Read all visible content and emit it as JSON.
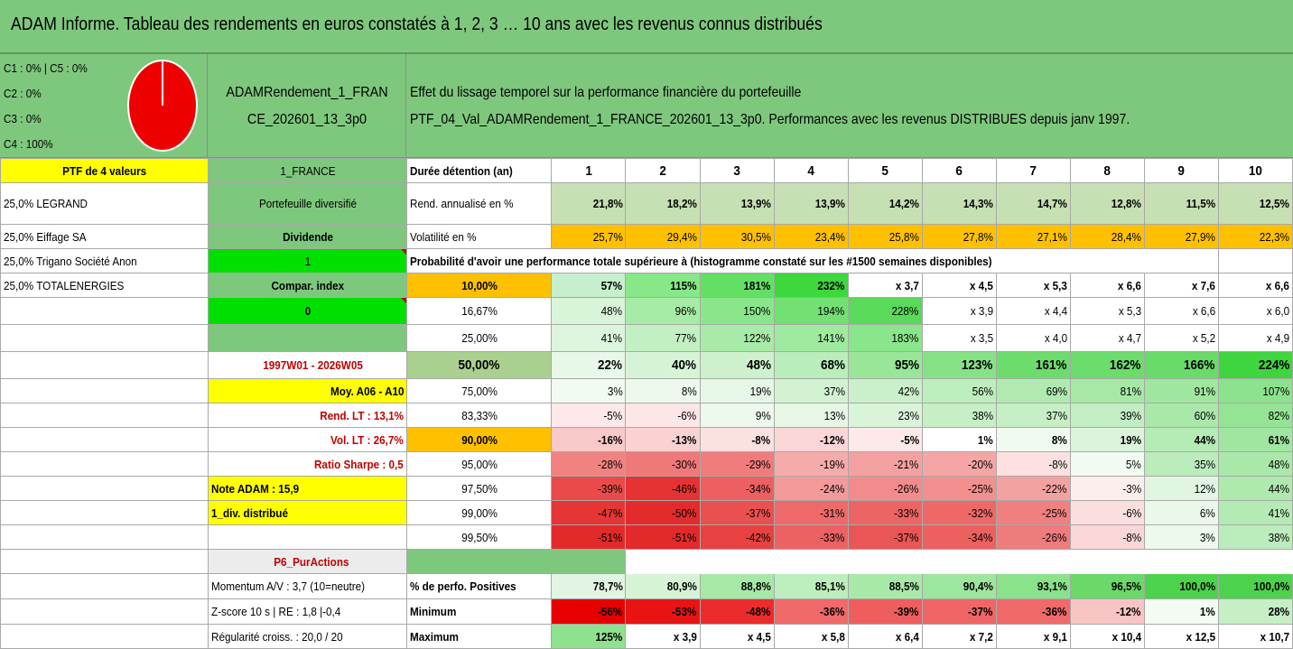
{
  "title": "ADAM Informe. Tableau des rendements en euros constatés à 1, 2, 3 … 10 ans avec les revenus connus distribués",
  "legend": {
    "lines": [
      "C1 : 0% | C5 : 0%",
      "C2 : 0%",
      "C3 : 0%",
      "C4 : 100%"
    ],
    "pie_color": "#ee0000",
    "pie_fraction": 1.0
  },
  "code": {
    "line1": "ADAMRendement_1_FRAN",
    "line2": "CE_202601_13_3p0"
  },
  "desc": {
    "line1": "Effet du lissage temporel sur la performance financière du portefeuille",
    "line2": "PTF_04_Val_ADAMRendement_1_FRANCE_202601_13_3p0. Performances avec les revenus DISTRIBUES depuis janv 1997."
  },
  "left": {
    "ptf": "PTF de 4 valeurs",
    "holdings": [
      "25,0% LEGRAND",
      "25,0% Eiffage SA",
      "25,0% Trigano Société Anon",
      "25,0% TOTALENERGIES"
    ]
  },
  "mid": {
    "france": "1_FRANCE",
    "portefeuille": "Portefeuille diversifié",
    "dividende": "Dividende",
    "one": "1",
    "compar": "Compar. index",
    "zero": "0",
    "period": "1997W01 - 2026W05",
    "moy": "Moy. A06 - A10",
    "rend_lt": "Rend. LT : 13,1%",
    "vol_lt": "Vol. LT : 26,7%",
    "sharpe": "Ratio Sharpe : 0,5",
    "note": "Note ADAM : 15,9",
    "div": "1_div. distribué",
    "p6": "P6_PurActions",
    "momentum": "Momentum A/V : 3,7 (10=neutre)",
    "zscore": "Z-score 10 s | RE : 1,8 |-0,4",
    "regularite": "Régularité croiss. : 20,0 / 20"
  },
  "header": {
    "label": "Durée détention (an)",
    "years": [
      "1",
      "2",
      "3",
      "4",
      "5",
      "6",
      "7",
      "8",
      "9",
      "10"
    ]
  },
  "rend": {
    "label": "Rend. annualisé en %",
    "values": [
      "21,8%",
      "18,2%",
      "13,9%",
      "13,9%",
      "14,2%",
      "14,3%",
      "14,7%",
      "12,8%",
      "11,5%",
      "12,5%"
    ]
  },
  "vol": {
    "label": "Volatilité en %",
    "values": [
      "25,7%",
      "29,4%",
      "30,5%",
      "23,4%",
      "25,8%",
      "27,8%",
      "27,1%",
      "28,4%",
      "27,9%",
      "22,3%"
    ]
  },
  "proba_title": "Probabilité d'avoir une performance totale supérieure à (histogramme constaté sur les #1500 semaines disponibles)",
  "proba": [
    {
      "label": "10,00%",
      "values": [
        "57%",
        "115%",
        "181%",
        "232%",
        "x 3,7",
        "x 4,5",
        "x 5,3",
        "x 6,6",
        "x 7,6",
        "x 6,6"
      ]
    },
    {
      "label": "16,67%",
      "values": [
        "48%",
        "96%",
        "150%",
        "194%",
        "228%",
        "x 3,9",
        "x 4,4",
        "x 5,3",
        "x 6,6",
        "x 6,0"
      ]
    },
    {
      "label": "25,00%",
      "values": [
        "41%",
        "77%",
        "122%",
        "141%",
        "183%",
        "x 3,5",
        "x 4,0",
        "x 4,7",
        "x 5,2",
        "x 4,9"
      ]
    },
    {
      "label": "50,00%",
      "values": [
        "22%",
        "40%",
        "48%",
        "68%",
        "95%",
        "123%",
        "161%",
        "162%",
        "166%",
        "224%"
      ]
    },
    {
      "label": "75,00%",
      "values": [
        "3%",
        "8%",
        "19%",
        "37%",
        "42%",
        "56%",
        "69%",
        "81%",
        "91%",
        "107%"
      ]
    },
    {
      "label": "83,33%",
      "values": [
        "-5%",
        "-6%",
        "9%",
        "13%",
        "23%",
        "38%",
        "37%",
        "39%",
        "60%",
        "82%"
      ]
    },
    {
      "label": "90,00%",
      "values": [
        "-16%",
        "-13%",
        "-8%",
        "-12%",
        "-5%",
        "1%",
        "8%",
        "19%",
        "44%",
        "61%"
      ]
    },
    {
      "label": "95,00%",
      "values": [
        "-28%",
        "-30%",
        "-29%",
        "-19%",
        "-21%",
        "-20%",
        "-8%",
        "5%",
        "35%",
        "48%"
      ]
    },
    {
      "label": "97,50%",
      "values": [
        "-39%",
        "-46%",
        "-34%",
        "-24%",
        "-26%",
        "-25%",
        "-22%",
        "-3%",
        "12%",
        "44%"
      ]
    },
    {
      "label": "99,00%",
      "values": [
        "-47%",
        "-50%",
        "-37%",
        "-31%",
        "-33%",
        "-32%",
        "-25%",
        "-6%",
        "6%",
        "41%"
      ]
    },
    {
      "label": "99,50%",
      "values": [
        "-51%",
        "-51%",
        "-42%",
        "-33%",
        "-37%",
        "-34%",
        "-26%",
        "-8%",
        "3%",
        "38%"
      ]
    }
  ],
  "positives": {
    "label": "% de perfo. Positives",
    "values": [
      "78,7%",
      "80,9%",
      "88,8%",
      "85,1%",
      "88,5%",
      "90,4%",
      "93,1%",
      "96,5%",
      "100,0%",
      "100,0%"
    ]
  },
  "minimum": {
    "label": "Minimum",
    "values": [
      "-56%",
      "-53%",
      "-48%",
      "-36%",
      "-39%",
      "-37%",
      "-36%",
      "-12%",
      "1%",
      "28%"
    ]
  },
  "maximum": {
    "label": "Maximum",
    "values": [
      "125%",
      "x 3,9",
      "x 4,5",
      "x 5,8",
      "x 6,4",
      "x 7,2",
      "x 9,1",
      "x 10,4",
      "x 12,5",
      "x 10,7"
    ]
  },
  "colors": {
    "green_bg": "#7ec87e",
    "yellow": "#ffff00",
    "orange": "#ffc000",
    "bright_green": "#00e000",
    "title_red": "#c00000"
  },
  "cell_colors": {
    "rend": [
      "#c6e0b4",
      "#c6e0b4",
      "#c6e0b4",
      "#c6e0b4",
      "#c6e0b4",
      "#c6e0b4",
      "#c6e0b4",
      "#c6e0b4",
      "#c6e0b4",
      "#c6e0b4"
    ],
    "vol": [
      "#ffc000",
      "#ffc000",
      "#ffc000",
      "#ffc000",
      "#ffc000",
      "#ffc000",
      "#ffc000",
      "#ffc000",
      "#ffc000",
      "#ffc000"
    ],
    "proba": [
      [
        "#c6efce",
        "#86e886",
        "#63e063",
        "#3cd83c",
        "#ffffff",
        "#ffffff",
        "#ffffff",
        "#ffffff",
        "#ffffff",
        "#ffffff"
      ],
      [
        "#d9f5d9",
        "#a6eca6",
        "#8ae68a",
        "#72e072",
        "#5ad95a",
        "#ffffff",
        "#ffffff",
        "#ffffff",
        "#ffffff",
        "#ffffff"
      ],
      [
        "#dcf5dc",
        "#c2f0c2",
        "#a8eba8",
        "#a0eaa0",
        "#8ae68a",
        "#ffffff",
        "#ffffff",
        "#ffffff",
        "#ffffff",
        "#ffffff"
      ],
      [
        "#e8f8e8",
        "#d7f3d7",
        "#cdf1cd",
        "#b9edb9",
        "#99e699",
        "#86e286",
        "#6cdc6c",
        "#6cdc6c",
        "#68db68",
        "#3ed53e"
      ],
      [
        "#f2fbf2",
        "#eef9ee",
        "#e6f7e6",
        "#d2f2d2",
        "#caf0ca",
        "#bdeebd",
        "#b1eab1",
        "#a6e8a6",
        "#9fe69f",
        "#8de28d"
      ],
      [
        "#fde9e9",
        "#fde6e6",
        "#edf9ed",
        "#e6f7e6",
        "#daf4da",
        "#c6efc6",
        "#c6efc6",
        "#c3eec3",
        "#aae8aa",
        "#95e395"
      ],
      [
        "#f9c8c8",
        "#fad2d2",
        "#fce1e1",
        "#fbd6d6",
        "#fde9e9",
        "#ffffff",
        "#f1faf1",
        "#dcf4dc",
        "#b5ebb5",
        "#a0e6a0"
      ],
      [
        "#f08282",
        "#ef7878",
        "#f07c7c",
        "#f6abab",
        "#f5a0a0",
        "#f6a5a5",
        "#fde1e1",
        "#f2fbf2",
        "#bbecbb",
        "#aae8aa"
      ],
      [
        "#ea4a4a",
        "#e53333",
        "#ec6060",
        "#f49a9a",
        "#f28c8c",
        "#f29090",
        "#f3a2a2",
        "#fdeeee",
        "#e1f6e1",
        "#aee9ae"
      ],
      [
        "#e53535",
        "#e32b2b",
        "#ea5050",
        "#ee6a6a",
        "#ed6464",
        "#ee6868",
        "#f08080",
        "#fbdede",
        "#e9f8e9",
        "#b4ebb4"
      ],
      [
        "#e22a2a",
        "#e22a2a",
        "#e74141",
        "#ec6262",
        "#ea5555",
        "#ec6060",
        "#ef7c7c",
        "#fad6d6",
        "#eef9ee",
        "#bbecbb"
      ]
    ],
    "positives": [
      "#e2f5e2",
      "#d6f3d6",
      "#a6e8a6",
      "#bdeebd",
      "#a8e9a8",
      "#9de69d",
      "#8ae28a",
      "#6ad96a",
      "#4cd24c",
      "#4cd24c"
    ],
    "minimum": [
      "#e60000",
      "#e81414",
      "#ec2c2c",
      "#f06a6a",
      "#ee5e5e",
      "#f06666",
      "#f06a6a",
      "#f9c4c4",
      "#f3fbf3",
      "#c6efc6"
    ],
    "maximum": [
      "#8ee28e",
      "#ffffff",
      "#ffffff",
      "#ffffff",
      "#ffffff",
      "#ffffff",
      "#ffffff",
      "#ffffff",
      "#ffffff",
      "#ffffff"
    ]
  }
}
